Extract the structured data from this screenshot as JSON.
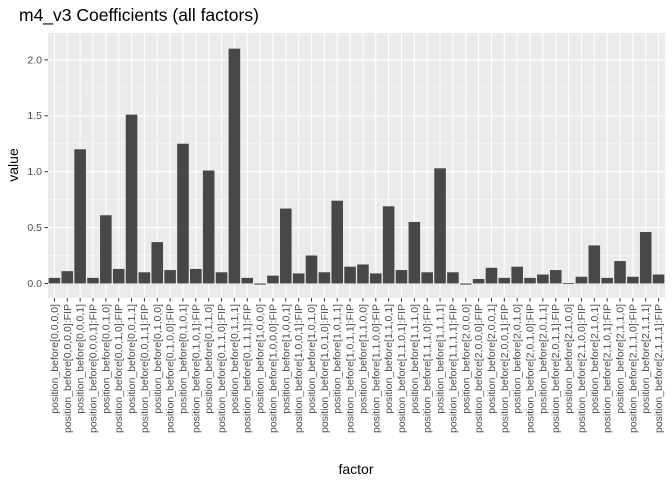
{
  "chart_data": {
    "type": "bar",
    "title": "m4_v3 Coefficients (all factors)",
    "xlabel": "factor",
    "ylabel": "value",
    "ylim": [
      -0.13,
      2.24
    ],
    "yticks": [
      0.0,
      0.5,
      1.0,
      1.5,
      2.0
    ],
    "ytick_labels": [
      "0.0",
      "0.5",
      "1.0",
      "1.5",
      "2.0"
    ],
    "grid": true,
    "colors": {
      "panel": "#ebebeb",
      "grid_major": "#ffffff",
      "grid_minor": "#f5f5f5",
      "bar": "#474747",
      "tick_text": "#4d4d4d",
      "tick_mark": "#333333"
    },
    "categories": [
      "position_before[0,0,0,0]",
      "position_before[0,0,0,0]:FIP",
      "position_before[0,0,0,1]",
      "position_before[0,0,0,1]:FIP",
      "position_before[0,0,1,0]",
      "position_before[0,0,1,0]:FIP",
      "position_before[0,0,1,1]",
      "position_before[0,0,1,1]:FIP",
      "position_before[0,1,0,0]",
      "position_before[0,1,0,0]:FIP",
      "position_before[0,1,0,1]",
      "position_before[0,1,0,1]:FIP",
      "position_before[0,1,1,0]",
      "position_before[0,1,1,0]:FIP",
      "position_before[0,1,1,1]",
      "position_before[0,1,1,1]:FIP",
      "position_before[1,0,0,0]",
      "position_before[1,0,0,0]:FIP",
      "position_before[1,0,0,1]",
      "position_before[1,0,0,1]:FIP",
      "position_before[1,0,1,0]",
      "position_before[1,0,1,0]:FIP",
      "position_before[1,0,1,1]",
      "position_before[1,0,1,1]:FIP",
      "position_before[1,1,0,0]",
      "position_before[1,1,0,0]:FIP",
      "position_before[1,1,0,1]",
      "position_before[1,1,0,1]:FIP",
      "position_before[1,1,1,0]",
      "position_before[1,1,1,0]:FIP",
      "position_before[1,1,1,1]",
      "position_before[1,1,1,1]:FIP",
      "position_before[2,0,0,0]",
      "position_before[2,0,0,0]:FIP",
      "position_before[2,0,0,1]",
      "position_before[2,0,0,1]:FIP",
      "position_before[2,0,1,0]",
      "position_before[2,0,1,0]:FIP",
      "position_before[2,0,1,1]",
      "position_before[2,0,1,1]:FIP",
      "position_before[2,1,0,0]",
      "position_before[2,1,0,0]:FIP",
      "position_before[2,1,0,1]",
      "position_before[2,1,0,1]:FIP",
      "position_before[2,1,1,0]",
      "position_before[2,1,1,0]:FIP",
      "position_before[2,1,1,1]",
      "position_before[2,1,1,1]:FIP"
    ],
    "values": [
      0.05,
      0.11,
      1.2,
      0.05,
      0.61,
      0.13,
      1.51,
      0.1,
      0.37,
      0.12,
      1.25,
      0.13,
      1.01,
      0.1,
      2.1,
      0.05,
      -0.01,
      0.07,
      0.67,
      0.09,
      0.25,
      0.1,
      0.74,
      0.15,
      0.17,
      0.09,
      0.69,
      0.12,
      0.55,
      0.1,
      1.03,
      0.1,
      -0.01,
      0.04,
      0.14,
      0.05,
      0.15,
      0.05,
      0.08,
      0.12,
      0.0,
      0.06,
      0.34,
      0.05,
      0.2,
      0.06,
      0.46,
      0.08
    ]
  }
}
